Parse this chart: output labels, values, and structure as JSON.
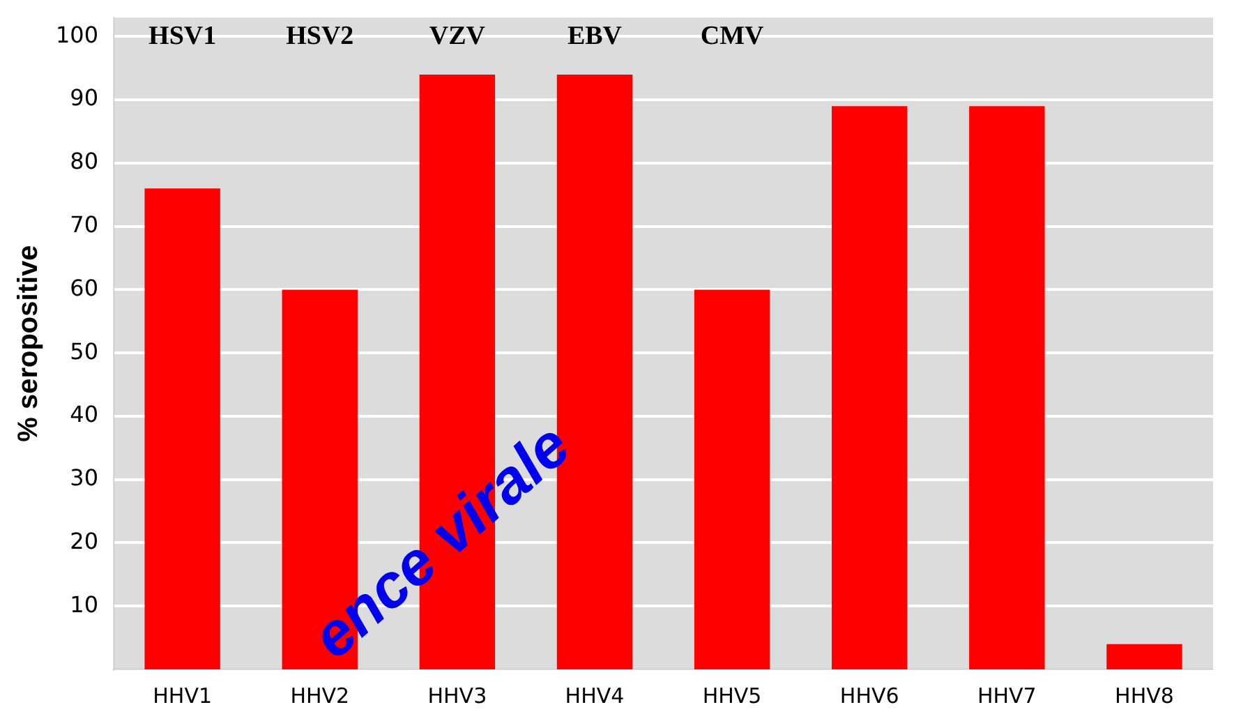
{
  "chart_data": {
    "type": "bar",
    "ylabel": "% seropositive",
    "categories": [
      "HHV1",
      "HHV2",
      "HHV3",
      "HHV4",
      "HHV5",
      "HHV6",
      "HHV7",
      "HHV8"
    ],
    "values": [
      76,
      60,
      94,
      94,
      60,
      89,
      89,
      4
    ],
    "color": "#ff0000",
    "ylim": [
      0,
      103
    ],
    "yticks": [
      10,
      20,
      30,
      40,
      50,
      60,
      70,
      80,
      90,
      100
    ],
    "grid": "y",
    "annotations": [
      "HSV1",
      "HSV2",
      "VZV",
      "EBV",
      "CMV",
      "ence virale"
    ]
  }
}
